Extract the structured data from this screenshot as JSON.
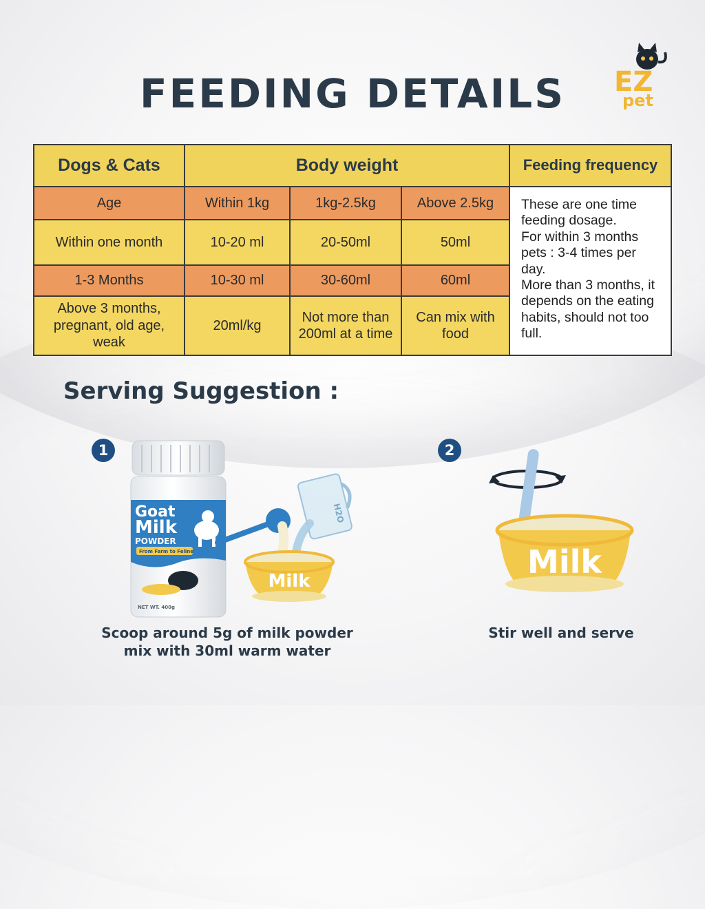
{
  "header": {
    "title": "FEEDING DETAILS",
    "logo_line1": "EZ",
    "logo_line2": "pet"
  },
  "table": {
    "col_animal": "Dogs & Cats",
    "col_weight": "Body weight",
    "col_frequency": "Feeding frequency",
    "rows": [
      {
        "label": "Age",
        "c1": "Within 1kg",
        "c2": "1kg-2.5kg",
        "c3": "Above 2.5kg"
      },
      {
        "label": "Within one month",
        "c1": "10-20 ml",
        "c2": "20-50ml",
        "c3": "50ml"
      },
      {
        "label": "1-3 Months",
        "c1": "10-30 ml",
        "c2": "30-60ml",
        "c3": "60ml"
      },
      {
        "label": "Above 3 months, pregnant, old age, weak",
        "c1": "20ml/kg",
        "c2": "Not more than 200ml at a time",
        "c3": "Can mix with food"
      }
    ],
    "frequency_note": [
      "These are one time feeding dosage.",
      "For within 3 months pets : 3-4 times per day.",
      "More than 3 months, it depends on the eating habits, should not too full."
    ]
  },
  "serving": {
    "title": "Serving Suggestion :",
    "steps": [
      {
        "number": "1",
        "caption_line1": "Scoop around 5g of milk powder",
        "caption_line2": "mix with 30ml warm water"
      },
      {
        "number": "2",
        "caption_line1": "Stir well and serve"
      }
    ],
    "bowl_label": "Milk",
    "jug_label": "H2O",
    "jar": {
      "line1": "Goat",
      "line2": "Milk",
      "line3": "POWDER",
      "tagline": "From Farm to Feline",
      "net": "NET WT. 400g"
    }
  },
  "colors": {
    "navy": "#2b3a48",
    "badge": "#1f4f82",
    "header_yellow": "#f0d35a",
    "row_orange": "#ed9a5e",
    "row_yellow": "#f3d760",
    "bowl_yellow": "#f3c94c"
  }
}
